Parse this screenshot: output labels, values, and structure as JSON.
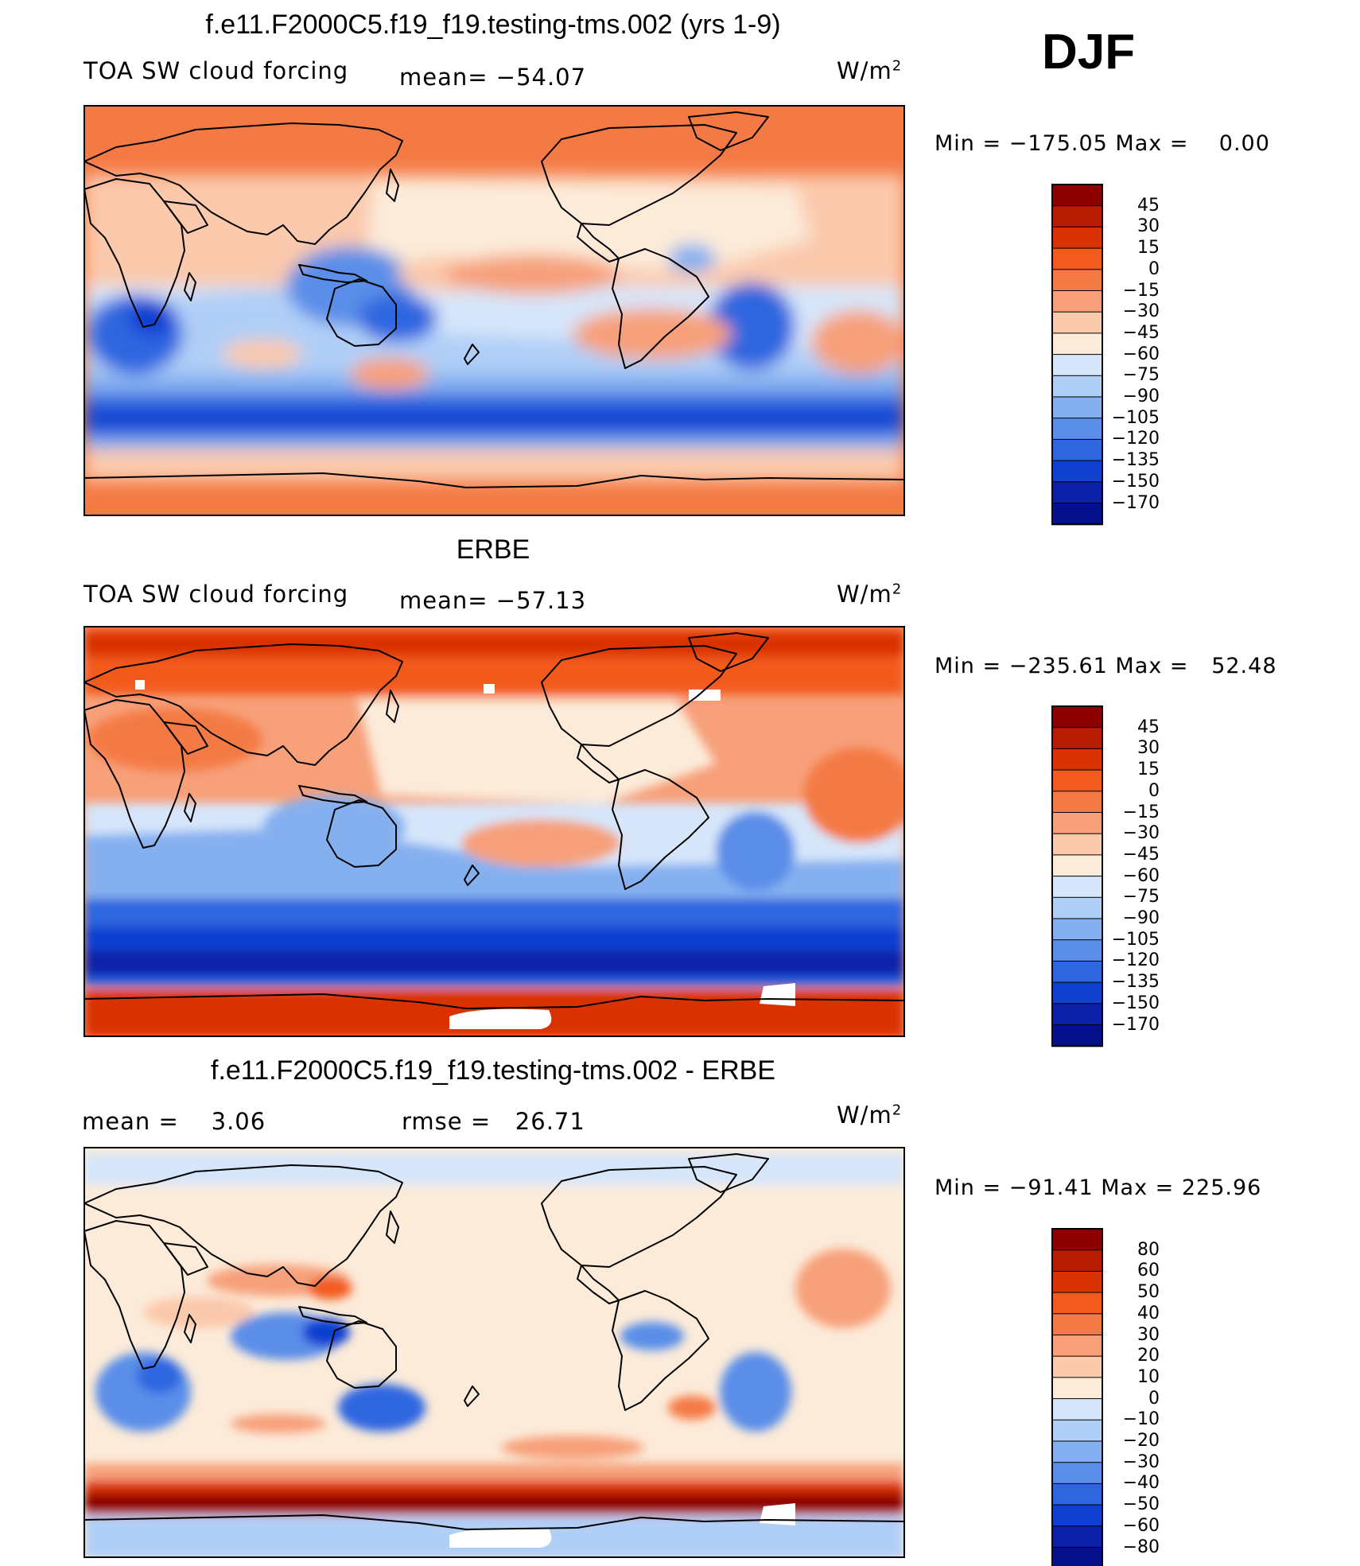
{
  "season": "DJF",
  "chart_data": [
    {
      "type": "heatmap",
      "title": "f.e11.F2000C5.f19_f19.testing-tms.002 (yrs 1-9)",
      "variable": "TOA SW cloud forcing",
      "units_base": "W/m",
      "units_exp": "2",
      "stat1_label": "mean=",
      "stat1_value": "−54.07",
      "min_label": "Min",
      "min_value": "−175.05",
      "max_label": "Max",
      "max_value": "0.00",
      "levels": [
        "45",
        "30",
        "15",
        "0",
        "−15",
        "−30",
        "−45",
        "−60",
        "−75",
        "−90",
        "−105",
        "−120",
        "−135",
        "−150",
        "−170"
      ],
      "colors": [
        "#8b0000",
        "#b51c00",
        "#d93305",
        "#f25a1e",
        "#f47a45",
        "#f7a07a",
        "#fbc9ac",
        "#fcebd9",
        "#d6e6fa",
        "#b0cff7",
        "#85b0f0",
        "#5a8ee8",
        "#2e66e0",
        "#1040d0",
        "#0a20a8",
        "#04108a"
      ]
    },
    {
      "type": "heatmap",
      "title": "ERBE",
      "variable": "TOA SW cloud forcing",
      "units_base": "W/m",
      "units_exp": "2",
      "stat1_label": "mean=",
      "stat1_value": "−57.13",
      "min_label": "Min",
      "min_value": "−235.61",
      "max_label": "Max",
      "max_value": "52.48",
      "levels": [
        "45",
        "30",
        "15",
        "0",
        "−15",
        "−30",
        "−45",
        "−60",
        "−75",
        "−90",
        "−105",
        "−120",
        "−135",
        "−150",
        "−170"
      ],
      "colors": [
        "#8b0000",
        "#b51c00",
        "#d93305",
        "#f25a1e",
        "#f47a45",
        "#f7a07a",
        "#fbc9ac",
        "#fcebd9",
        "#d6e6fa",
        "#b0cff7",
        "#85b0f0",
        "#5a8ee8",
        "#2e66e0",
        "#1040d0",
        "#0a20a8",
        "#04108a"
      ]
    },
    {
      "type": "heatmap",
      "title": "f.e11.F2000C5.f19_f19.testing-tms.002 - ERBE",
      "units_base": "W/m",
      "units_exp": "2",
      "stat1_label": "mean =",
      "stat1_value": "3.06",
      "stat2_label": "rmse =",
      "stat2_value": "26.71",
      "min_label": "Min",
      "min_value": "−91.41",
      "max_label": "Max",
      "max_value": "225.96",
      "levels": [
        "80",
        "60",
        "50",
        "40",
        "30",
        "20",
        "10",
        "0",
        "−10",
        "−20",
        "−30",
        "−40",
        "−50",
        "−60",
        "−80"
      ],
      "colors": [
        "#8b0000",
        "#b51c00",
        "#d93305",
        "#f25a1e",
        "#f47a45",
        "#f7a07a",
        "#fbc9ac",
        "#fcebd9",
        "#d6e6fa",
        "#b0cff7",
        "#85b0f0",
        "#5a8ee8",
        "#2e66e0",
        "#1040d0",
        "#0a20a8",
        "#04108a"
      ]
    }
  ]
}
